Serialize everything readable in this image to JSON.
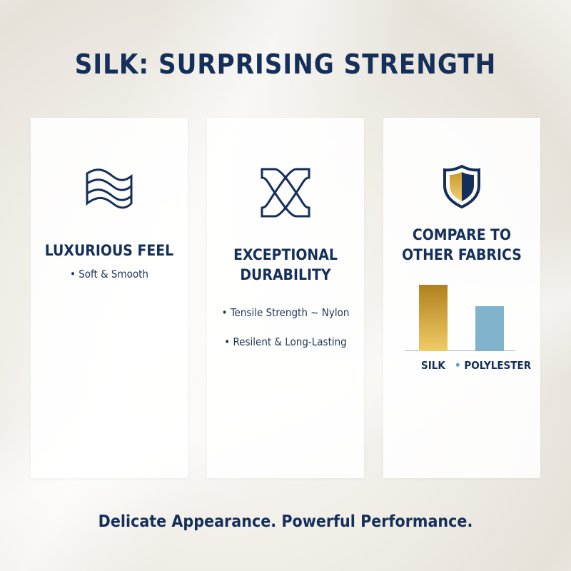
{
  "title": "SILK: SURPRISING STRENGTH",
  "cards": [
    {
      "icon": "wave-fabric-icon",
      "heading": "LUXURIOUS FEEL",
      "bullets": [
        "• Soft & Smooth"
      ]
    },
    {
      "icon": "interlocking-knot-icon",
      "heading_line1": "EXCEPTIONAL",
      "heading_line2": "DURABILITY",
      "bullets": [
        "• Tensile Strength ~ Nylon",
        "• Resilent & Long-Lasting"
      ]
    },
    {
      "icon": "shield-icon",
      "heading_line1": "COMPARE TO",
      "heading_line2": "OTHER FABRICS"
    }
  ],
  "chart_data": {
    "type": "bar",
    "categories": [
      "SILK",
      "POLYLESTER"
    ],
    "values": [
      1.0,
      0.68
    ],
    "colors": [
      "#c9992f",
      "#7fb4cc"
    ],
    "ylim": [
      0,
      1
    ],
    "grid": false
  },
  "footer": "Delicate Appearance. Powerful Performance.",
  "colors": {
    "navy": "#14305a",
    "gold": "#c9992f",
    "blue": "#7fb4cc"
  }
}
